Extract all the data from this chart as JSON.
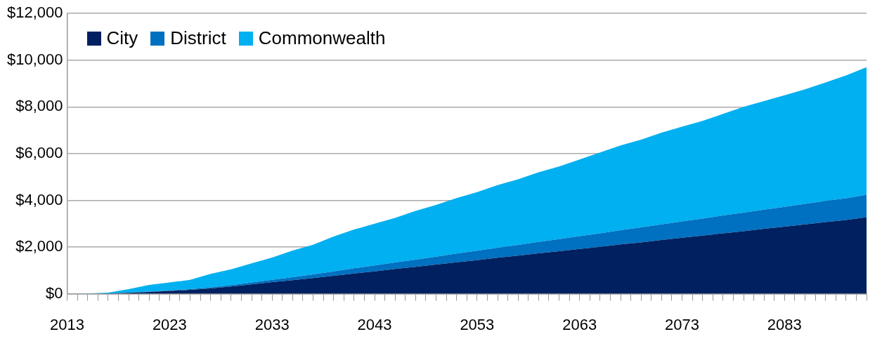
{
  "chart_data": {
    "type": "area",
    "stacked": true,
    "legend": "top left",
    "grid": "y",
    "x": [
      2013,
      2015,
      2017,
      2019,
      2021,
      2023,
      2025,
      2027,
      2029,
      2031,
      2033,
      2035,
      2037,
      2039,
      2041,
      2043,
      2045,
      2047,
      2049,
      2051,
      2053,
      2055,
      2057,
      2059,
      2061,
      2063,
      2065,
      2067,
      2069,
      2071,
      2073,
      2075,
      2077,
      2079,
      2081,
      2083,
      2085,
      2087,
      2089,
      2091
    ],
    "xlim": [
      2013,
      2091
    ],
    "xticks": [
      2013,
      {
        "value": 2014,
        "label": null
      },
      {
        "value": 2015,
        "label": null
      },
      {
        "value": 2016,
        "label": null
      },
      {
        "value": 2017,
        "label": null
      },
      {
        "value": 2018,
        "label": null
      },
      {
        "value": 2019,
        "label": null
      },
      {
        "value": 2020,
        "label": null
      },
      {
        "value": 2021,
        "label": null
      },
      {
        "value": 2022,
        "label": null
      },
      2023,
      {
        "value": 2024,
        "label": null
      },
      {
        "value": 2025,
        "label": null
      },
      {
        "value": 2026,
        "label": null
      },
      {
        "value": 2027,
        "label": null
      },
      {
        "value": 2028,
        "label": null
      },
      {
        "value": 2029,
        "label": null
      },
      {
        "value": 2030,
        "label": null
      },
      {
        "value": 2031,
        "label": null
      },
      {
        "value": 2032,
        "label": null
      },
      2033,
      {
        "value": 2034,
        "label": null
      },
      {
        "value": 2035,
        "label": null
      },
      {
        "value": 2036,
        "label": null
      },
      {
        "value": 2037,
        "label": null
      },
      {
        "value": 2038,
        "label": null
      },
      {
        "value": 2039,
        "label": null
      },
      {
        "value": 2040,
        "label": null
      },
      {
        "value": 2041,
        "label": null
      },
      {
        "value": 2042,
        "label": null
      },
      2043,
      {
        "value": 2044,
        "label": null
      },
      {
        "value": 2045,
        "label": null
      },
      {
        "value": 2046,
        "label": null
      },
      {
        "value": 2047,
        "label": null
      },
      {
        "value": 2048,
        "label": null
      },
      {
        "value": 2049,
        "label": null
      },
      {
        "value": 2050,
        "label": null
      },
      {
        "value": 2051,
        "label": null
      },
      {
        "value": 2052,
        "label": null
      },
      2053,
      {
        "value": 2054,
        "label": null
      },
      {
        "value": 2055,
        "label": null
      },
      {
        "value": 2056,
        "label": null
      },
      {
        "value": 2057,
        "label": null
      },
      {
        "value": 2058,
        "label": null
      },
      {
        "value": 2059,
        "label": null
      },
      {
        "value": 2060,
        "label": null
      },
      {
        "value": 2061,
        "label": null
      },
      {
        "value": 2062,
        "label": null
      },
      2063,
      {
        "value": 2064,
        "label": null
      },
      {
        "value": 2065,
        "label": null
      },
      {
        "value": 2066,
        "label": null
      },
      {
        "value": 2067,
        "label": null
      },
      {
        "value": 2068,
        "label": null
      },
      {
        "value": 2069,
        "label": null
      },
      {
        "value": 2070,
        "label": null
      },
      {
        "value": 2071,
        "label": null
      },
      {
        "value": 2072,
        "label": null
      },
      2073,
      {
        "value": 2074,
        "label": null
      },
      {
        "value": 2075,
        "label": null
      },
      {
        "value": 2076,
        "label": null
      },
      {
        "value": 2077,
        "label": null
      },
      {
        "value": 2078,
        "label": null
      },
      {
        "value": 2079,
        "label": null
      },
      {
        "value": 2080,
        "label": null
      },
      {
        "value": 2081,
        "label": null
      },
      {
        "value": 2082,
        "label": null
      },
      2083,
      {
        "value": 2084,
        "label": null
      },
      {
        "value": 2085,
        "label": null
      },
      {
        "value": 2086,
        "label": null
      },
      {
        "value": 2087,
        "label": null
      },
      {
        "value": 2088,
        "label": null
      },
      {
        "value": 2089,
        "label": null
      },
      {
        "value": 2090,
        "label": null
      },
      {
        "value": 2091,
        "label": null
      }
    ],
    "ylim": [
      0,
      12000
    ],
    "yticks": [
      {
        "value": 0,
        "label": "$0"
      },
      {
        "value": 2000,
        "label": "$2,000"
      },
      {
        "value": 4000,
        "label": "$4,000"
      },
      {
        "value": 6000,
        "label": "$6,000"
      },
      {
        "value": 8000,
        "label": "$8,000"
      },
      {
        "value": 10000,
        "label": "$10,000"
      },
      {
        "value": 12000,
        "label": "$12,000"
      }
    ],
    "series": [
      {
        "name": "City",
        "color": "#002060",
        "values": [
          0,
          0,
          10,
          40,
          80,
          120,
          170,
          230,
          310,
          400,
          500,
          580,
          670,
          770,
          870,
          960,
          1060,
          1150,
          1250,
          1350,
          1440,
          1540,
          1630,
          1730,
          1820,
          1920,
          2010,
          2110,
          2200,
          2300,
          2400,
          2490,
          2590,
          2680,
          2780,
          2870,
          2970,
          3070,
          3160,
          3280
        ]
      },
      {
        "name": "District",
        "color": "#0070c0",
        "values": [
          0,
          0,
          0,
          5,
          10,
          15,
          25,
          40,
          60,
          80,
          100,
          130,
          160,
          190,
          220,
          250,
          280,
          310,
          340,
          370,
          400,
          430,
          460,
          490,
          520,
          550,
          580,
          610,
          640,
          670,
          700,
          730,
          760,
          790,
          820,
          850,
          880,
          910,
          930,
          960
        ]
      },
      {
        "name": "Commonwealth",
        "color": "#00b0f0",
        "values": [
          0,
          10,
          40,
          155,
          290,
          345,
          405,
          580,
          680,
          820,
          950,
          1140,
          1270,
          1490,
          1660,
          1790,
          1910,
          2090,
          2210,
          2380,
          2510,
          2680,
          2810,
          2980,
          3110,
          3280,
          3460,
          3630,
          3760,
          3930,
          4050,
          4180,
          4350,
          4530,
          4650,
          4780,
          4900,
          5070,
          5260,
          5460
        ]
      }
    ]
  }
}
